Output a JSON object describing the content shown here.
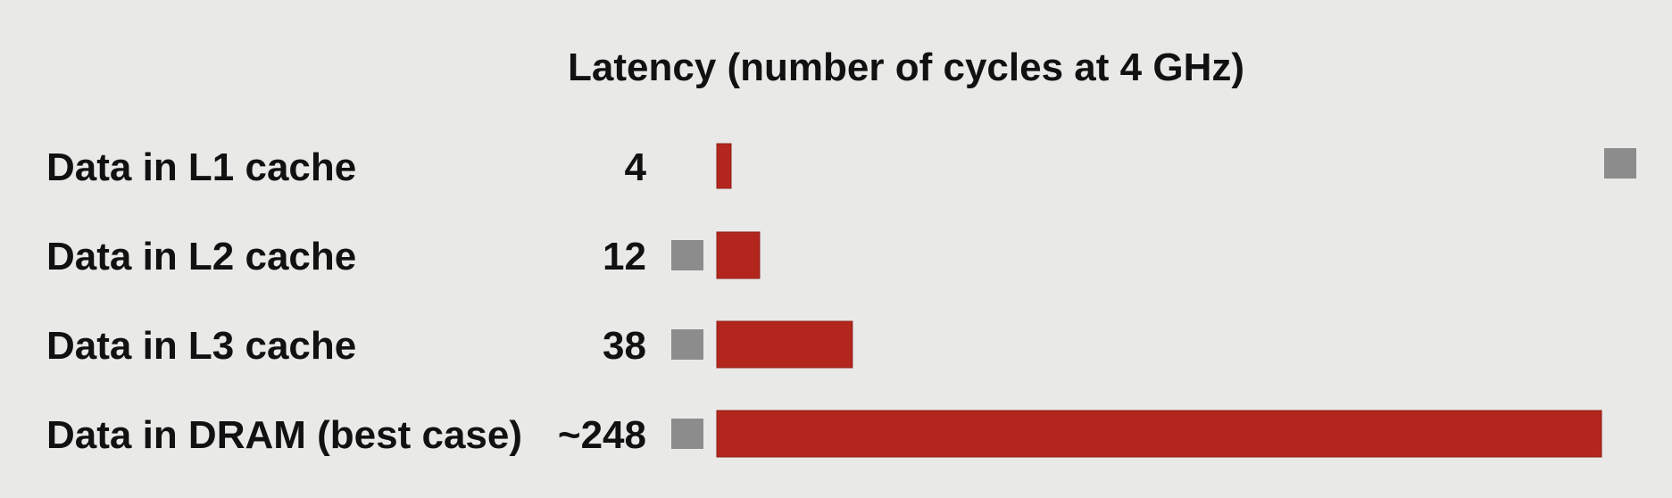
{
  "chart_data": {
    "type": "bar",
    "orientation": "horizontal",
    "title": "Latency (number of cycles at 4 GHz)",
    "categories": [
      "Data in L1 cache",
      "Data in L2 cache",
      "Data in L3 cache",
      "Data in DRAM (best case)"
    ],
    "value_labels": [
      "4",
      "12",
      "38",
      "~248"
    ],
    "values": [
      4,
      12,
      38,
      248
    ],
    "xlim": [
      0,
      248
    ],
    "grid": false,
    "legend": "none"
  },
  "colors": {
    "background": "#e9e9e7",
    "bar": "#b3261e",
    "bar_edge": "#8e1d16",
    "marker": "#8c8c8c",
    "text": "#111111"
  }
}
